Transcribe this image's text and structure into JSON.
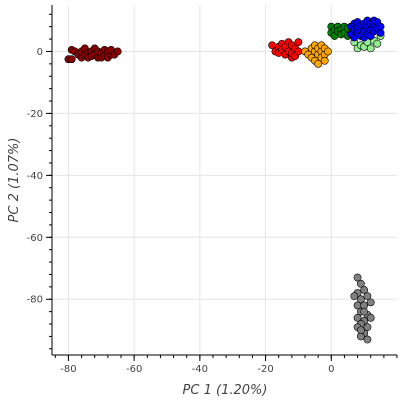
{
  "chart_data": {
    "type": "scatter",
    "title": "",
    "xlabel": "PC 1 (1.20%)",
    "ylabel": "PC 2 (1.07%)",
    "xlim": [
      -85,
      20
    ],
    "ylim": [
      -98,
      15
    ],
    "x_ticks": [
      -80,
      -60,
      -40,
      -20,
      0
    ],
    "y_ticks": [
      0,
      -20,
      -40,
      -60,
      -80
    ],
    "x_tick_labels": [
      "-80",
      "-60",
      "-40",
      "-20",
      "0"
    ],
    "y_tick_labels": [
      "0",
      "-20",
      "-40",
      "-60",
      "-80"
    ],
    "grid": true,
    "legend": "none",
    "series": [
      {
        "color": "#8b0000",
        "points": [
          [
            -80,
            -2.5
          ],
          [
            -79,
            -2.5
          ],
          [
            -79,
            0.5
          ],
          [
            -78,
            0
          ],
          [
            -77,
            -1
          ],
          [
            -76,
            -2
          ],
          [
            -76,
            0
          ],
          [
            -75,
            -1
          ],
          [
            -75,
            1
          ],
          [
            -74,
            -0.5
          ],
          [
            -74,
            -2
          ],
          [
            -73,
            0
          ],
          [
            -73,
            -1.5
          ],
          [
            -72,
            1
          ],
          [
            -72,
            -1
          ],
          [
            -71,
            -2
          ],
          [
            -71,
            0
          ],
          [
            -70,
            -0.5
          ],
          [
            -70,
            -2
          ],
          [
            -69,
            0.5
          ],
          [
            -69,
            -1.5
          ],
          [
            -68,
            0
          ],
          [
            -68,
            -2
          ],
          [
            -67,
            -1
          ],
          [
            -67,
            0.5
          ],
          [
            -66,
            -1
          ],
          [
            -65,
            0
          ]
        ]
      },
      {
        "color": "#ff0000",
        "points": [
          [
            -18,
            2
          ],
          [
            -17,
            0
          ],
          [
            -16,
            1.5
          ],
          [
            -16,
            -0.5
          ],
          [
            -15,
            2.5
          ],
          [
            -15,
            0.5
          ],
          [
            -14,
            -1
          ],
          [
            -14,
            1.5
          ],
          [
            -13,
            3
          ],
          [
            -13,
            0
          ],
          [
            -12,
            2
          ],
          [
            -12,
            -2
          ],
          [
            -12,
            -0.5
          ],
          [
            -11,
            1
          ],
          [
            -11,
            -1.5
          ],
          [
            -10,
            0
          ],
          [
            -10,
            3
          ]
        ]
      },
      {
        "color": "#ffa500",
        "points": [
          [
            -8,
            0
          ],
          [
            -7,
            -1
          ],
          [
            -6,
            1
          ],
          [
            -6,
            -2
          ],
          [
            -5,
            0
          ],
          [
            -5,
            -3
          ],
          [
            -5,
            2
          ],
          [
            -4,
            -1
          ],
          [
            -4,
            1
          ],
          [
            -4,
            -4
          ],
          [
            -3,
            0
          ],
          [
            -3,
            -2
          ],
          [
            -3,
            2
          ],
          [
            -2,
            -1
          ],
          [
            -2,
            1
          ],
          [
            -2,
            -3
          ],
          [
            -1,
            0
          ]
        ]
      },
      {
        "color": "#90ee90",
        "points": [
          [
            7,
            3
          ],
          [
            8,
            1
          ],
          [
            9,
            2
          ],
          [
            10,
            1.5
          ],
          [
            11,
            3
          ],
          [
            12,
            1
          ],
          [
            13,
            3.5
          ],
          [
            14,
            2.5
          ],
          [
            15,
            5
          ]
        ]
      },
      {
        "color": "#008000",
        "points": [
          [
            0,
            8
          ],
          [
            0,
            6
          ],
          [
            1,
            7
          ],
          [
            1,
            5
          ],
          [
            2,
            8
          ],
          [
            2,
            6.5
          ],
          [
            3,
            7
          ],
          [
            3,
            5.5
          ],
          [
            4,
            8
          ],
          [
            4,
            6
          ],
          [
            5,
            7.5
          ],
          [
            5,
            5
          ]
        ]
      },
      {
        "color": "#0000ff",
        "points": [
          [
            6,
            8
          ],
          [
            6,
            5.5
          ],
          [
            7,
            9
          ],
          [
            7,
            7
          ],
          [
            7,
            4.5
          ],
          [
            8,
            8
          ],
          [
            8,
            6
          ],
          [
            8,
            9.5
          ],
          [
            9,
            7
          ],
          [
            9,
            5
          ],
          [
            9,
            8.5
          ],
          [
            10,
            9
          ],
          [
            10,
            6.5
          ],
          [
            10,
            4.5
          ],
          [
            11,
            8
          ],
          [
            11,
            5.5
          ],
          [
            11,
            10
          ],
          [
            12,
            7
          ],
          [
            12,
            9
          ],
          [
            12,
            5
          ],
          [
            13,
            8.5
          ],
          [
            13,
            6.5
          ],
          [
            13,
            10
          ],
          [
            14,
            7.5
          ],
          [
            14,
            9.5
          ],
          [
            15,
            6
          ],
          [
            15,
            8
          ]
        ]
      },
      {
        "color": "#808080",
        "points": [
          [
            8,
            -73
          ],
          [
            9,
            -75
          ],
          [
            8,
            -78
          ],
          [
            10,
            -77
          ],
          [
            9,
            -80
          ],
          [
            11,
            -79
          ],
          [
            8,
            -82
          ],
          [
            10,
            -82
          ],
          [
            9,
            -84
          ],
          [
            11,
            -85
          ],
          [
            8,
            -86
          ],
          [
            10,
            -87
          ],
          [
            9,
            -88
          ],
          [
            11,
            -89
          ],
          [
            10,
            -91
          ],
          [
            9,
            -92
          ],
          [
            11,
            -93
          ],
          [
            7,
            -79
          ],
          [
            12,
            -81
          ],
          [
            10,
            -84
          ],
          [
            8,
            -89
          ],
          [
            12,
            -86
          ],
          [
            9,
            -90
          ]
        ]
      }
    ]
  }
}
